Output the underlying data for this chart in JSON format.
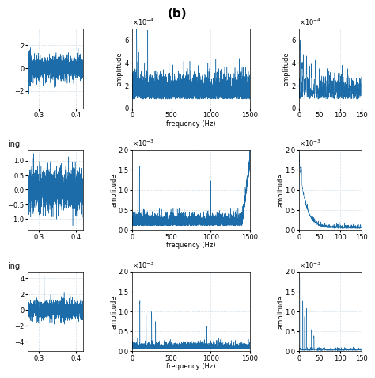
{
  "title": "(b)",
  "title_fontsize": 11,
  "title_fontweight": "bold",
  "line_color": "#1b6ca8",
  "background_color": "#ffffff",
  "grid_color": "#aec6d8",
  "freq_xlabel": "frequency (Hz)",
  "amp_ylabel": "amplitude",
  "row0_ylim": [
    0,
    0.0007
  ],
  "row1_ylim": [
    0,
    0.002
  ],
  "row2_ylim": [
    0,
    0.002
  ],
  "freq_xlim_full": [
    0,
    1500
  ],
  "freq_xlim_zoom": [
    0,
    150
  ],
  "time_xlim": [
    0.27,
    0.42
  ],
  "time_xticks": [
    0.3,
    0.4
  ]
}
